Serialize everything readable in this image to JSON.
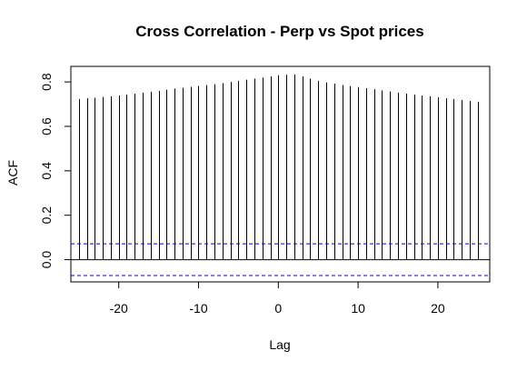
{
  "chart_data": {
    "type": "bar",
    "title": "Cross Correlation - Perp vs Spot prices",
    "xlabel": "Lag",
    "ylabel": "ACF",
    "x": [
      -25,
      -24,
      -23,
      -22,
      -21,
      -20,
      -19,
      -18,
      -17,
      -16,
      -15,
      -14,
      -13,
      -12,
      -11,
      -10,
      -9,
      -8,
      -7,
      -6,
      -5,
      -4,
      -3,
      -2,
      -1,
      0,
      1,
      2,
      3,
      4,
      5,
      6,
      7,
      8,
      9,
      10,
      11,
      12,
      13,
      14,
      15,
      16,
      17,
      18,
      19,
      20,
      21,
      22,
      23,
      24,
      25
    ],
    "values": [
      0.723,
      0.726,
      0.729,
      0.732,
      0.735,
      0.739,
      0.743,
      0.747,
      0.752,
      0.756,
      0.76,
      0.765,
      0.77,
      0.774,
      0.778,
      0.782,
      0.786,
      0.79,
      0.795,
      0.8,
      0.805,
      0.81,
      0.815,
      0.82,
      0.825,
      0.83,
      0.832,
      0.833,
      0.825,
      0.815,
      0.805,
      0.798,
      0.792,
      0.786,
      0.781,
      0.777,
      0.772,
      0.767,
      0.762,
      0.757,
      0.752,
      0.747,
      0.743,
      0.739,
      0.735,
      0.731,
      0.727,
      0.723,
      0.719,
      0.715,
      0.711
    ],
    "xlim": [
      -26,
      26.5
    ],
    "ylim": [
      -0.1,
      0.87
    ],
    "xticks": [
      -20,
      -10,
      0,
      10,
      20
    ],
    "xtick_labels": [
      "-20",
      "-10",
      "0",
      "10",
      "20"
    ],
    "yticks": [
      0.0,
      0.2,
      0.4,
      0.6,
      0.8
    ],
    "ytick_labels": [
      "0.0",
      "0.2",
      "0.4",
      "0.6",
      "0.8"
    ],
    "zero_line": 0,
    "confidence_bounds": [
      0.0715,
      -0.0715
    ],
    "grid": false,
    "colors": {
      "bars": "#000000",
      "bounds": "#0000cc",
      "frame": "#000000"
    }
  }
}
